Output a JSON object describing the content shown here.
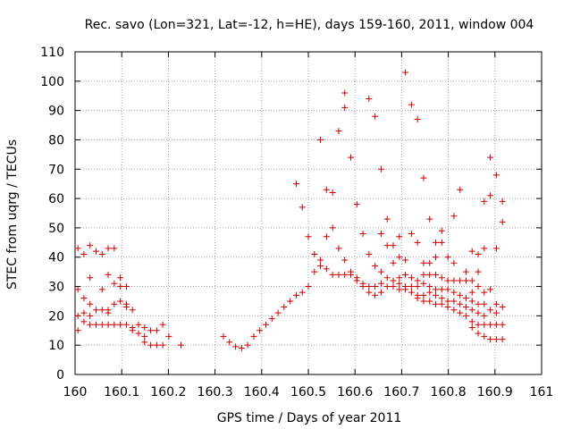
{
  "chart_data": {
    "type": "scatter",
    "title": "Rec. savo (Lon=321, Lat=-12, h=HE), days 159-160, 2011, window 004",
    "xlabel": "GPS time / Days of year 2011",
    "ylabel": "STEC from uqrg / TECUs",
    "xlim": [
      160,
      161
    ],
    "ylim": [
      0,
      110
    ],
    "xticks": [
      160,
      160.1,
      160.2,
      160.3,
      160.4,
      160.5,
      160.6,
      160.7,
      160.8,
      160.9,
      161
    ],
    "xtick_labels": [
      "160",
      "160.1",
      "160.2",
      "160.3",
      "160.4",
      "160.5",
      "160.6",
      "160.7",
      "160.8",
      "160.9",
      "161"
    ],
    "yticks": [
      0,
      10,
      20,
      30,
      40,
      50,
      60,
      70,
      80,
      90,
      100,
      110
    ],
    "ytick_labels": [
      "0",
      "10",
      "20",
      "30",
      "40",
      "50",
      "60",
      "70",
      "80",
      "90",
      "100",
      "110"
    ],
    "grid": true,
    "marker": "plus",
    "color": "#cc0000",
    "points": [
      [
        160.006,
        43
      ],
      [
        160.006,
        29
      ],
      [
        160.006,
        20
      ],
      [
        160.006,
        15
      ],
      [
        160.019,
        41
      ],
      [
        160.019,
        26
      ],
      [
        160.019,
        21
      ],
      [
        160.019,
        18
      ],
      [
        160.032,
        44
      ],
      [
        160.032,
        33
      ],
      [
        160.032,
        24
      ],
      [
        160.032,
        20
      ],
      [
        160.032,
        17
      ],
      [
        160.045,
        42
      ],
      [
        160.045,
        22
      ],
      [
        160.045,
        17
      ],
      [
        160.058,
        41
      ],
      [
        160.058,
        29
      ],
      [
        160.058,
        22
      ],
      [
        160.058,
        17
      ],
      [
        160.071,
        43
      ],
      [
        160.071,
        34
      ],
      [
        160.071,
        22
      ],
      [
        160.071,
        21
      ],
      [
        160.071,
        17
      ],
      [
        160.084,
        43
      ],
      [
        160.084,
        31
      ],
      [
        160.084,
        24
      ],
      [
        160.084,
        17
      ],
      [
        160.097,
        33
      ],
      [
        160.097,
        30
      ],
      [
        160.097,
        25
      ],
      [
        160.097,
        17
      ],
      [
        160.11,
        30
      ],
      [
        160.11,
        24
      ],
      [
        160.11,
        23
      ],
      [
        160.11,
        17
      ],
      [
        160.123,
        22
      ],
      [
        160.123,
        16
      ],
      [
        160.123,
        15
      ],
      [
        160.136,
        17
      ],
      [
        160.136,
        14
      ],
      [
        160.149,
        16
      ],
      [
        160.149,
        13
      ],
      [
        160.149,
        11
      ],
      [
        160.162,
        15
      ],
      [
        160.162,
        10
      ],
      [
        160.175,
        15
      ],
      [
        160.175,
        10
      ],
      [
        160.188,
        17
      ],
      [
        160.188,
        10
      ],
      [
        160.201,
        13
      ],
      [
        160.227,
        10
      ],
      [
        160.318,
        13
      ],
      [
        160.331,
        11
      ],
      [
        160.344,
        9.5
      ],
      [
        160.357,
        9
      ],
      [
        160.37,
        10
      ],
      [
        160.383,
        13
      ],
      [
        160.396,
        15
      ],
      [
        160.409,
        17
      ],
      [
        160.422,
        19
      ],
      [
        160.435,
        21
      ],
      [
        160.448,
        23
      ],
      [
        160.461,
        25
      ],
      [
        160.474,
        65
      ],
      [
        160.474,
        27
      ],
      [
        160.487,
        57
      ],
      [
        160.487,
        28
      ],
      [
        160.5,
        47
      ],
      [
        160.5,
        30
      ],
      [
        160.513,
        41
      ],
      [
        160.513,
        35
      ],
      [
        160.526,
        80
      ],
      [
        160.526,
        39
      ],
      [
        160.526,
        37
      ],
      [
        160.539,
        63
      ],
      [
        160.539,
        47
      ],
      [
        160.539,
        36
      ],
      [
        160.552,
        62
      ],
      [
        160.552,
        50
      ],
      [
        160.552,
        34
      ],
      [
        160.565,
        83
      ],
      [
        160.565,
        43
      ],
      [
        160.565,
        34
      ],
      [
        160.578,
        96
      ],
      [
        160.578,
        91
      ],
      [
        160.578,
        39
      ],
      [
        160.578,
        34
      ],
      [
        160.591,
        74
      ],
      [
        160.591,
        35
      ],
      [
        160.591,
        34
      ],
      [
        160.604,
        58
      ],
      [
        160.604,
        33
      ],
      [
        160.604,
        32
      ],
      [
        160.617,
        48
      ],
      [
        160.617,
        31
      ],
      [
        160.617,
        30
      ],
      [
        160.63,
        94
      ],
      [
        160.63,
        41
      ],
      [
        160.63,
        30
      ],
      [
        160.63,
        28
      ],
      [
        160.643,
        88
      ],
      [
        160.643,
        37
      ],
      [
        160.643,
        30
      ],
      [
        160.643,
        27
      ],
      [
        160.656,
        70
      ],
      [
        160.656,
        48
      ],
      [
        160.656,
        35
      ],
      [
        160.656,
        31
      ],
      [
        160.656,
        28
      ],
      [
        160.669,
        53
      ],
      [
        160.669,
        44
      ],
      [
        160.669,
        33
      ],
      [
        160.669,
        30
      ],
      [
        160.682,
        44
      ],
      [
        160.682,
        38
      ],
      [
        160.682,
        32
      ],
      [
        160.682,
        30
      ],
      [
        160.695,
        47
      ],
      [
        160.695,
        40
      ],
      [
        160.695,
        33
      ],
      [
        160.695,
        31
      ],
      [
        160.695,
        29
      ],
      [
        160.708,
        103
      ],
      [
        160.708,
        39
      ],
      [
        160.708,
        34
      ],
      [
        160.708,
        30
      ],
      [
        160.708,
        29
      ],
      [
        160.721,
        92
      ],
      [
        160.721,
        48
      ],
      [
        160.721,
        33
      ],
      [
        160.721,
        30
      ],
      [
        160.721,
        28
      ],
      [
        160.734,
        87
      ],
      [
        160.734,
        45
      ],
      [
        160.734,
        32
      ],
      [
        160.734,
        30
      ],
      [
        160.734,
        27
      ],
      [
        160.734,
        26
      ],
      [
        160.747,
        67
      ],
      [
        160.747,
        38
      ],
      [
        160.747,
        34
      ],
      [
        160.747,
        31
      ],
      [
        160.747,
        27
      ],
      [
        160.747,
        25
      ],
      [
        160.76,
        53
      ],
      [
        160.76,
        38
      ],
      [
        160.76,
        34
      ],
      [
        160.76,
        30
      ],
      [
        160.76,
        28
      ],
      [
        160.76,
        25
      ],
      [
        160.773,
        45
      ],
      [
        160.773,
        40
      ],
      [
        160.773,
        34
      ],
      [
        160.773,
        29
      ],
      [
        160.773,
        27
      ],
      [
        160.773,
        24
      ],
      [
        160.786,
        49
      ],
      [
        160.786,
        45
      ],
      [
        160.786,
        33
      ],
      [
        160.786,
        29
      ],
      [
        160.786,
        26
      ],
      [
        160.786,
        24
      ],
      [
        160.799,
        40
      ],
      [
        160.799,
        32
      ],
      [
        160.799,
        29
      ],
      [
        160.799,
        25
      ],
      [
        160.799,
        23
      ],
      [
        160.812,
        54
      ],
      [
        160.812,
        38
      ],
      [
        160.812,
        32
      ],
      [
        160.812,
        28
      ],
      [
        160.812,
        25
      ],
      [
        160.812,
        22
      ],
      [
        160.825,
        63
      ],
      [
        160.825,
        32
      ],
      [
        160.825,
        27
      ],
      [
        160.825,
        24
      ],
      [
        160.825,
        21
      ],
      [
        160.838,
        35
      ],
      [
        160.838,
        32
      ],
      [
        160.838,
        26
      ],
      [
        160.838,
        23
      ],
      [
        160.838,
        20
      ],
      [
        160.851,
        42
      ],
      [
        160.851,
        32
      ],
      [
        160.851,
        28
      ],
      [
        160.851,
        25
      ],
      [
        160.851,
        22
      ],
      [
        160.851,
        18
      ],
      [
        160.851,
        16
      ],
      [
        160.864,
        41
      ],
      [
        160.864,
        35
      ],
      [
        160.864,
        30
      ],
      [
        160.864,
        24
      ],
      [
        160.864,
        21
      ],
      [
        160.864,
        17
      ],
      [
        160.864,
        14
      ],
      [
        160.877,
        59
      ],
      [
        160.877,
        43
      ],
      [
        160.877,
        28
      ],
      [
        160.877,
        24
      ],
      [
        160.877,
        20
      ],
      [
        160.877,
        17
      ],
      [
        160.877,
        13
      ],
      [
        160.89,
        74
      ],
      [
        160.89,
        61
      ],
      [
        160.89,
        29
      ],
      [
        160.89,
        22
      ],
      [
        160.89,
        17
      ],
      [
        160.89,
        12
      ],
      [
        160.903,
        68
      ],
      [
        160.903,
        43
      ],
      [
        160.903,
        24
      ],
      [
        160.903,
        21
      ],
      [
        160.903,
        17
      ],
      [
        160.903,
        12
      ],
      [
        160.916,
        59
      ],
      [
        160.916,
        52
      ],
      [
        160.916,
        23
      ],
      [
        160.916,
        17
      ],
      [
        160.916,
        12
      ]
    ]
  }
}
